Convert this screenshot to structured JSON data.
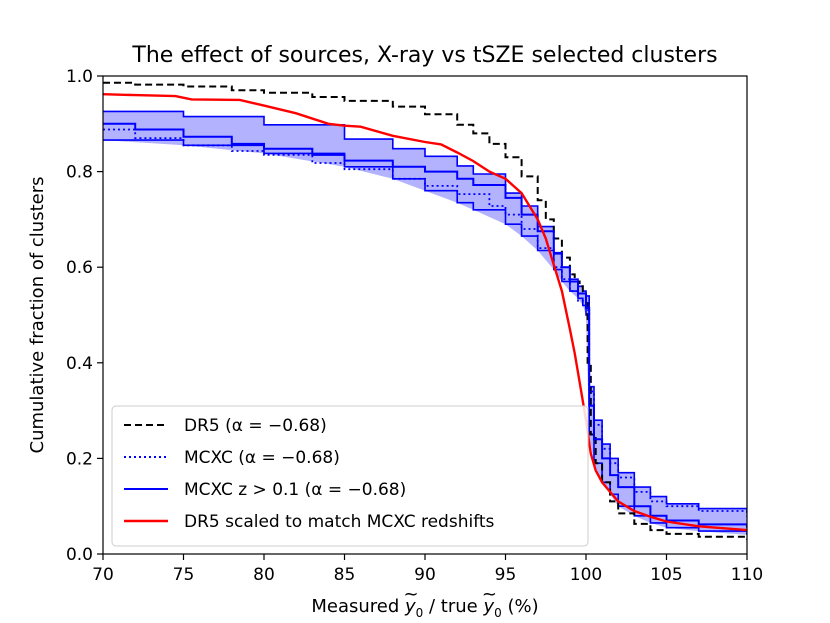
{
  "chart_data": {
    "type": "line",
    "title": "The effect of sources,  X-ray vs tSZE selected clusters",
    "xlabel_parts": [
      "Measured ",
      "y",
      "0",
      " / true ",
      "y",
      "0",
      " (%)"
    ],
    "ylabel": "Cumulative fraction of clusters",
    "xlim": [
      70,
      110
    ],
    "ylim": [
      0.0,
      1.0
    ],
    "xticks": [
      70,
      75,
      80,
      85,
      90,
      95,
      100,
      105,
      110
    ],
    "yticks": [
      0.0,
      0.2,
      0.4,
      0.6,
      0.8,
      1.0
    ],
    "ytick_labels": [
      "0.0",
      "0.2",
      "0.4",
      "0.6",
      "0.8",
      "1.0"
    ],
    "legend_position": "lower-left",
    "band": {
      "name": "MCXC z > 0.1 range",
      "color": "#0000ff",
      "opacity": 0.3,
      "x": [
        70,
        75,
        80,
        85,
        88,
        90,
        92,
        93,
        95,
        96,
        97,
        98,
        98.5,
        99,
        99.5,
        99.8,
        100,
        100.2,
        100.5,
        101,
        101.5,
        102,
        103,
        104,
        105,
        107,
        110
      ],
      "upper": [
        0.926,
        0.915,
        0.898,
        0.868,
        0.848,
        0.832,
        0.812,
        0.795,
        0.755,
        0.728,
        0.685,
        0.628,
        0.6,
        0.575,
        0.56,
        0.55,
        0.54,
        0.35,
        0.28,
        0.23,
        0.2,
        0.17,
        0.14,
        0.12,
        0.105,
        0.095,
        0.085
      ],
      "lower": [
        0.866,
        0.855,
        0.838,
        0.81,
        0.785,
        0.76,
        0.735,
        0.72,
        0.69,
        0.665,
        0.635,
        0.595,
        0.57,
        0.55,
        0.535,
        0.52,
        0.5,
        0.25,
        0.19,
        0.15,
        0.125,
        0.1,
        0.08,
        0.065,
        0.055,
        0.048,
        0.04
      ]
    },
    "series": [
      {
        "name": "DR5",
        "legend": "DR5 (α = −0.68)",
        "color": "#000000",
        "style": "dashed",
        "x": [
          70,
          72,
          75,
          78,
          80,
          83,
          85,
          88,
          90,
          92,
          93,
          94,
          95,
          96,
          97,
          97.5,
          98,
          98.5,
          99,
          99.3,
          99.6,
          99.8,
          100,
          100.1,
          100.3,
          100.6,
          101,
          101.5,
          102,
          103,
          104,
          105,
          107,
          110
        ],
        "y": [
          0.986,
          0.982,
          0.978,
          0.97,
          0.965,
          0.956,
          0.948,
          0.936,
          0.92,
          0.898,
          0.88,
          0.858,
          0.83,
          0.79,
          0.74,
          0.7,
          0.66,
          0.62,
          0.585,
          0.57,
          0.56,
          0.55,
          0.53,
          0.4,
          0.25,
          0.19,
          0.15,
          0.11,
          0.085,
          0.063,
          0.05,
          0.042,
          0.036,
          0.03
        ]
      },
      {
        "name": "MCXC",
        "legend": "MCXC (α = −0.68)",
        "color": "#0000ff",
        "style": "dotted",
        "x": [
          70,
          72,
          75,
          78,
          80,
          83,
          85,
          88,
          90,
          92,
          94,
          95,
          96,
          97,
          98,
          98.5,
          99,
          99.5,
          100,
          100.2,
          100.5,
          101,
          101.5,
          102,
          103,
          104,
          105,
          107,
          110
        ],
        "y": [
          0.888,
          0.87,
          0.855,
          0.843,
          0.835,
          0.818,
          0.805,
          0.785,
          0.77,
          0.753,
          0.728,
          0.71,
          0.68,
          0.64,
          0.6,
          0.575,
          0.55,
          0.53,
          0.51,
          0.34,
          0.27,
          0.22,
          0.19,
          0.16,
          0.13,
          0.11,
          0.1,
          0.09,
          0.078
        ]
      },
      {
        "name": "MCXC z > 0.1",
        "legend": "MCXC z > 0.1 (α = −0.68)",
        "color": "#0000ff",
        "style": "solid",
        "x": [
          70,
          72,
          75,
          78,
          80,
          83,
          85,
          88,
          90,
          92,
          93,
          95,
          96,
          97,
          98,
          98.5,
          99,
          99.5,
          100,
          100.2,
          100.5,
          101,
          101.5,
          102,
          103,
          104,
          105,
          107,
          110
        ],
        "y": [
          0.9,
          0.888,
          0.873,
          0.858,
          0.848,
          0.835,
          0.823,
          0.81,
          0.8,
          0.785,
          0.772,
          0.745,
          0.71,
          0.675,
          0.63,
          0.6,
          0.57,
          0.545,
          0.515,
          0.31,
          0.24,
          0.2,
          0.165,
          0.14,
          0.1,
          0.08,
          0.07,
          0.062,
          0.055
        ]
      },
      {
        "name": "DR5 scaled",
        "legend": "DR5 scaled to match MCXC redshifts",
        "color": "#ff0000",
        "style": "solid",
        "x": [
          70,
          72,
          74.5,
          75.5,
          78.5,
          80,
          82,
          84,
          85,
          86,
          88,
          90,
          91,
          92,
          93,
          94,
          95,
          96,
          97,
          97.5,
          98,
          98.5,
          99,
          99.3,
          99.6,
          100,
          100.3,
          100.6,
          101,
          101.5,
          102,
          103,
          104,
          105,
          107,
          110
        ],
        "y": [
          0.962,
          0.96,
          0.958,
          0.951,
          0.95,
          0.938,
          0.922,
          0.9,
          0.896,
          0.894,
          0.875,
          0.862,
          0.857,
          0.84,
          0.822,
          0.8,
          0.785,
          0.755,
          0.7,
          0.66,
          0.605,
          0.55,
          0.47,
          0.42,
          0.36,
          0.28,
          0.21,
          0.175,
          0.15,
          0.13,
          0.11,
          0.09,
          0.078,
          0.068,
          0.058,
          0.05
        ]
      }
    ]
  }
}
